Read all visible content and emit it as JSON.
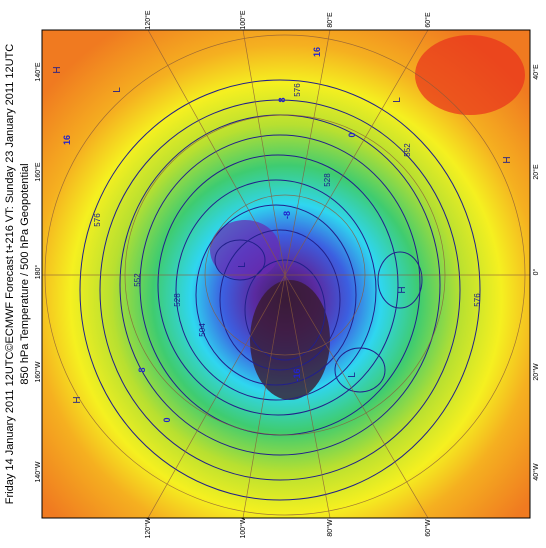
{
  "header": {
    "title": "Friday 14 January 2011 12UTC©ECMWF Forecast t+216 VT: Sunday 23 January 2011 12UTC",
    "subtitle": "850 hPa Temperature / 500 hPa Geopotential"
  },
  "map": {
    "top_labels": [
      "120°E",
      "100°E",
      "80°E",
      "60°E"
    ],
    "bottom_labels": [
      "120°W",
      "100°W",
      "80°W",
      "60°W"
    ],
    "left_labels": [
      "140°E",
      "160°E",
      "180°",
      "160°W",
      "140°W"
    ],
    "right_labels": [
      "40°E",
      "20°E",
      "0°",
      "20°W",
      "40°W"
    ],
    "contour_labels": [
      "576",
      "552",
      "528",
      "504",
      "576",
      "552",
      "528",
      "576"
    ],
    "temperature_labels": [
      "16",
      "8",
      "0",
      "-8",
      "-16",
      "8",
      "16",
      "0"
    ],
    "pressure_centres": [
      "H",
      "L",
      "H",
      "L",
      "H",
      "L",
      "L",
      "H"
    ]
  }
}
